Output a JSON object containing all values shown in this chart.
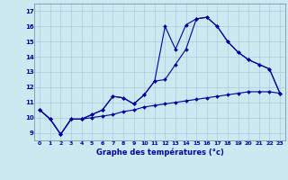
{
  "title": "Graphe des températures (°c)",
  "bg_color": "#cce8f0",
  "line_color": "#0000aa",
  "grid_color": "#aaccdd",
  "xlim": [
    -0.5,
    23.5
  ],
  "ylim": [
    8.5,
    17.5
  ],
  "xticks": [
    0,
    1,
    2,
    3,
    4,
    5,
    6,
    7,
    8,
    9,
    10,
    11,
    12,
    13,
    14,
    15,
    16,
    17,
    18,
    19,
    20,
    21,
    22,
    23
  ],
  "yticks": [
    9,
    10,
    11,
    12,
    13,
    14,
    15,
    16,
    17
  ],
  "line1_x": [
    0,
    1,
    2,
    3,
    4,
    5,
    6,
    7,
    8,
    9,
    10,
    11,
    12,
    13,
    14,
    15,
    16,
    17,
    18,
    19,
    20,
    21,
    22,
    23
  ],
  "line1_y": [
    10.5,
    9.9,
    8.9,
    9.9,
    9.9,
    10.2,
    10.5,
    11.4,
    11.3,
    10.9,
    11.5,
    12.4,
    16.0,
    14.5,
    16.1,
    16.5,
    16.6,
    16.0,
    15.0,
    14.3,
    13.8,
    13.5,
    13.2,
    11.6
  ],
  "line2_x": [
    0,
    1,
    2,
    3,
    4,
    5,
    6,
    7,
    8,
    9,
    10,
    11,
    12,
    13,
    14,
    15,
    16,
    17,
    18,
    19,
    20,
    21,
    22,
    23
  ],
  "line2_y": [
    10.5,
    9.9,
    8.9,
    9.9,
    9.9,
    10.2,
    10.5,
    11.4,
    11.3,
    10.9,
    11.5,
    12.4,
    12.5,
    13.5,
    14.5,
    16.5,
    16.6,
    16.0,
    15.0,
    14.3,
    13.8,
    13.5,
    13.2,
    11.6
  ],
  "line3_x": [
    0,
    1,
    2,
    3,
    4,
    5,
    6,
    7,
    8,
    9,
    10,
    11,
    12,
    13,
    14,
    15,
    16,
    17,
    18,
    19,
    20,
    21,
    22,
    23
  ],
  "line3_y": [
    10.5,
    9.9,
    8.9,
    9.9,
    9.9,
    10.0,
    10.1,
    10.2,
    10.4,
    10.5,
    10.7,
    10.8,
    10.9,
    11.0,
    11.1,
    11.2,
    11.3,
    11.4,
    11.5,
    11.6,
    11.7,
    11.7,
    11.7,
    11.6
  ]
}
